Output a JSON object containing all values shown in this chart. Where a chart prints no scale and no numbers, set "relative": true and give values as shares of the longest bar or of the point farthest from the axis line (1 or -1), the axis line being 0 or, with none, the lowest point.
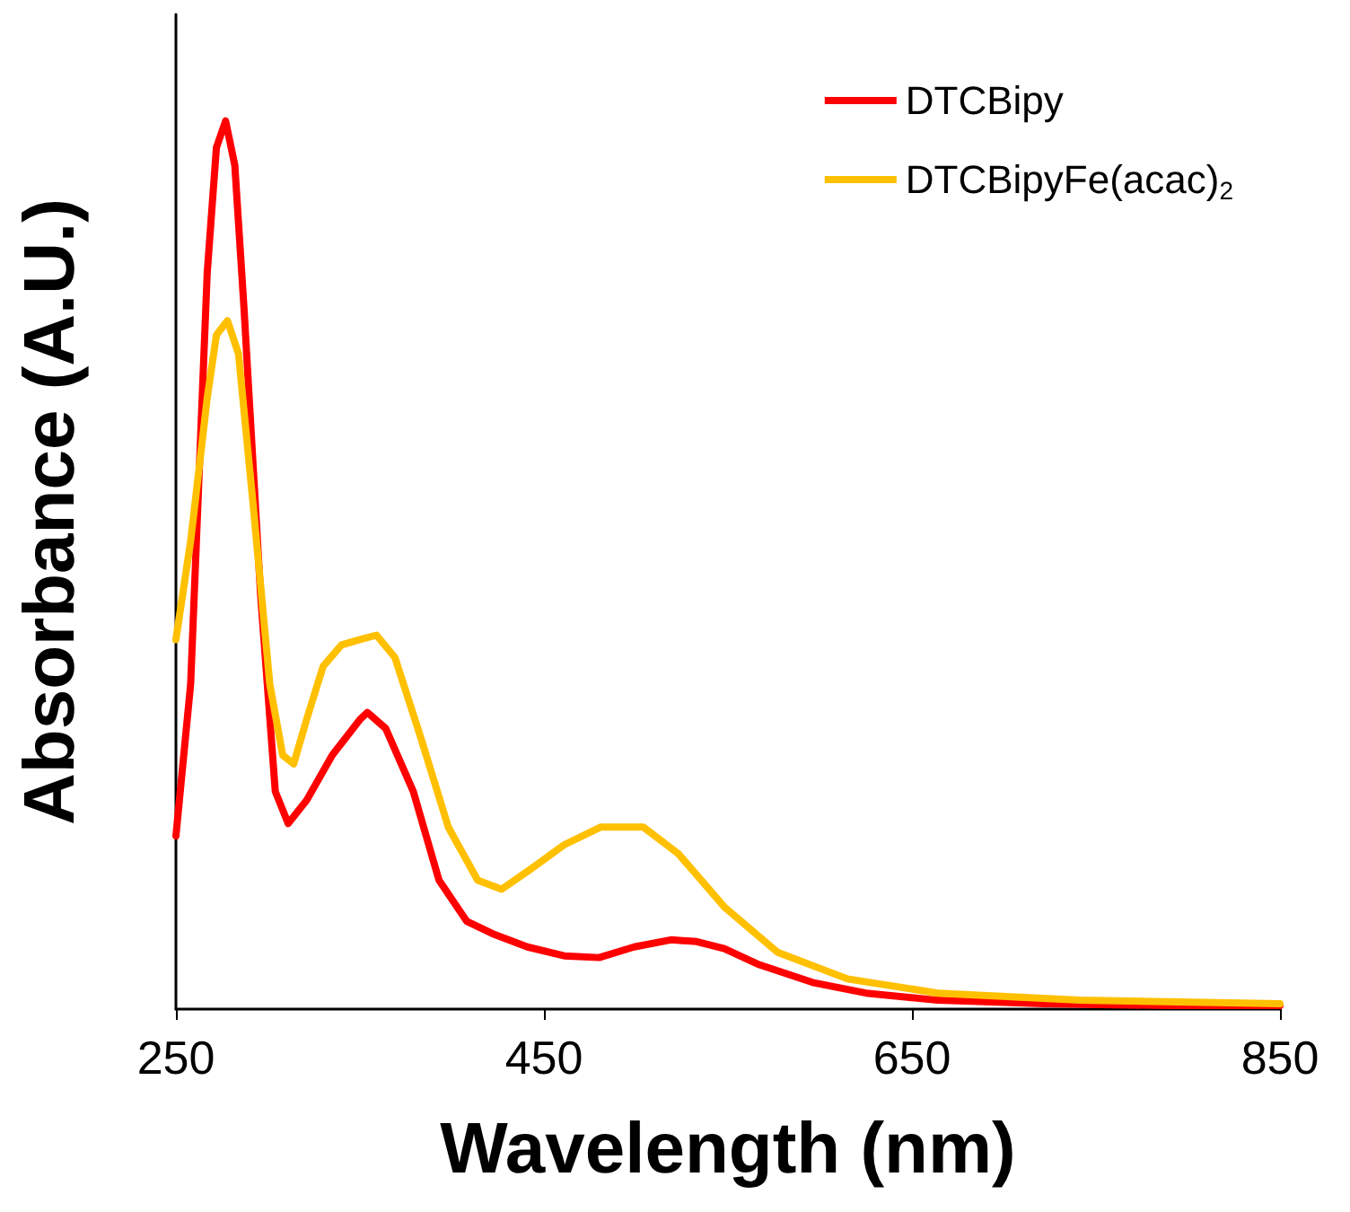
{
  "chart_data": {
    "type": "line",
    "xlabel": "Wavelength (nm)",
    "ylabel": "Absorbance (A.U.)",
    "relative": true,
    "xlim": [
      250,
      850
    ],
    "xticks": [
      250,
      450,
      650,
      850
    ],
    "tick_labels": "x",
    "grid": false,
    "legend": "top right",
    "marker": "none",
    "line_style": "solid",
    "series": [
      {
        "name": "DTCBipy",
        "color": "#ff0000",
        "x": [
          250,
          258,
          267,
          272,
          277,
          282,
          287,
          296,
          304,
          311,
          321,
          335,
          350,
          354,
          364,
          379,
          393,
          408,
          422,
          441,
          461,
          480,
          499,
          519,
          533,
          548,
          567,
          596,
          625,
          664,
          722,
          789,
          850
        ],
        "values": [
          0.195,
          0.366,
          0.829,
          0.97,
          1,
          0.95,
          0.789,
          0.467,
          0.245,
          0.209,
          0.235,
          0.286,
          0.326,
          0.334,
          0.316,
          0.245,
          0.145,
          0.099,
          0.085,
          0.07,
          0.06,
          0.058,
          0.07,
          0.078,
          0.076,
          0.068,
          0.05,
          0.03,
          0.018,
          0.01,
          0.006,
          0.004,
          0.004
        ]
      },
      {
        "name": "DTCBipyFe(acac)$_{2}$",
        "color": "#ffc000",
        "x": [
          250,
          258,
          267,
          272,
          278,
          284,
          292,
          301,
          308,
          314,
          321,
          330,
          340,
          350,
          359,
          369,
          383,
          398,
          414,
          427,
          441,
          461,
          481,
          504,
          523,
          548,
          577,
          615,
          664,
          741,
          850
        ],
        "values": [
          0.416,
          0.527,
          0.688,
          0.759,
          0.775,
          0.738,
          0.567,
          0.366,
          0.286,
          0.276,
          0.326,
          0.386,
          0.41,
          0.416,
          0.421,
          0.396,
          0.306,
          0.205,
          0.145,
          0.135,
          0.155,
          0.185,
          0.205,
          0.205,
          0.175,
          0.115,
          0.064,
          0.034,
          0.018,
          0.01,
          0.006
        ]
      }
    ]
  }
}
